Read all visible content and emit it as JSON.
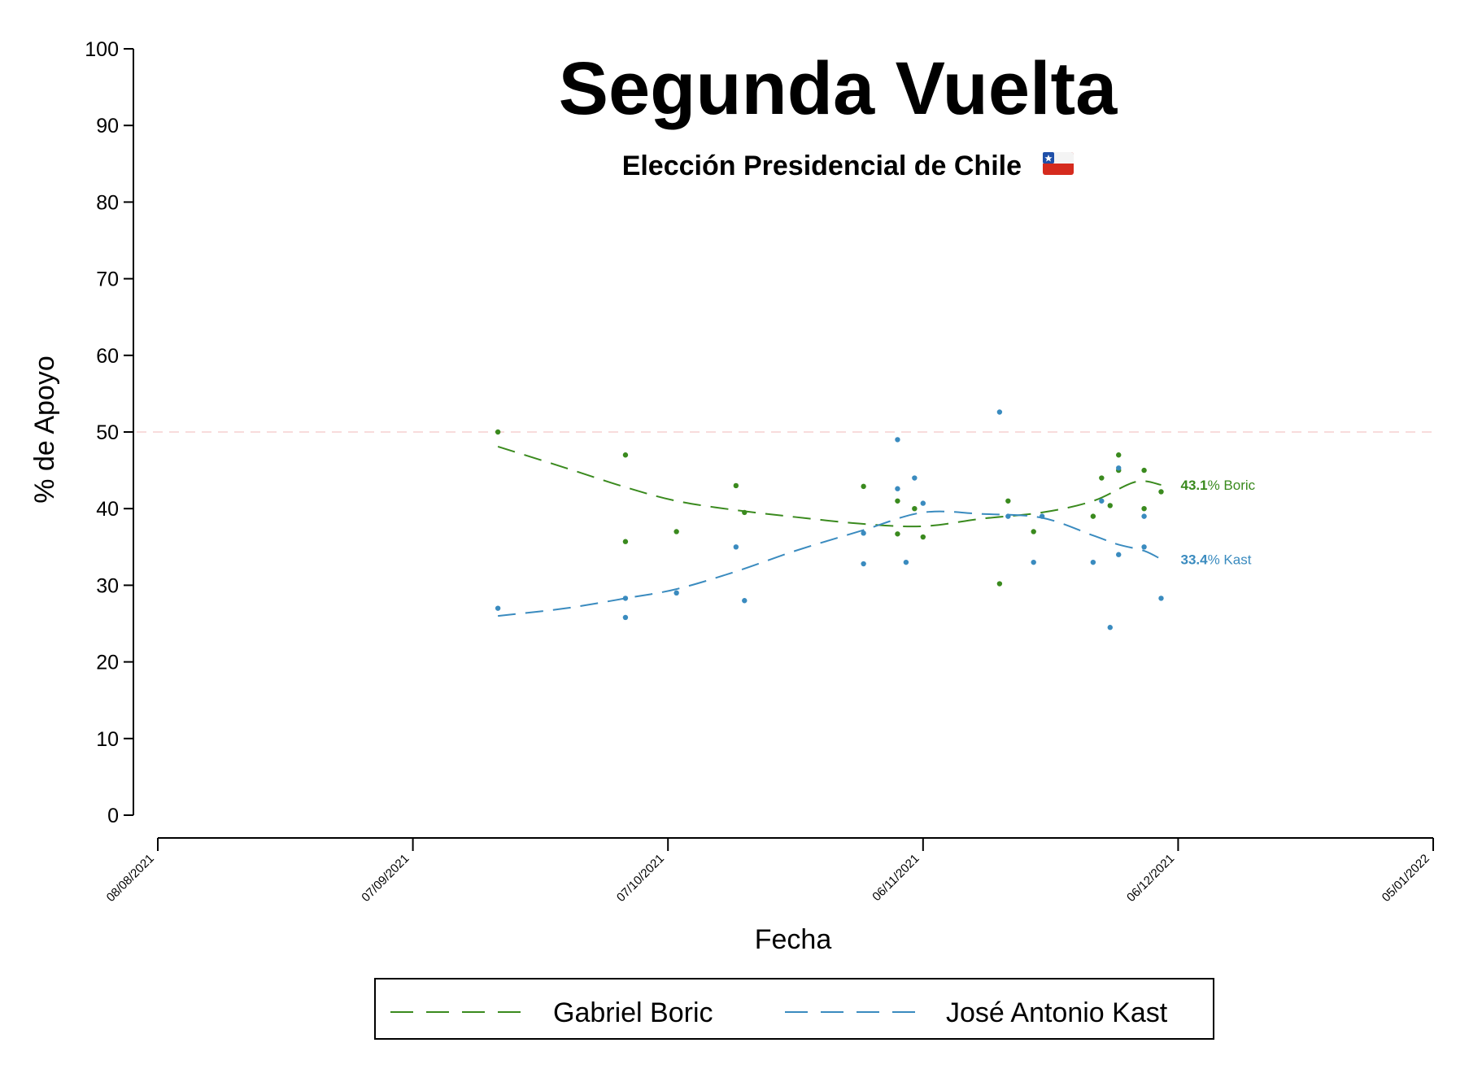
{
  "chart_data": {
    "type": "scatter",
    "title": "Segunda Vuelta",
    "subtitle": "Elección Presidencial de Chile",
    "xlabel": "Fecha",
    "ylabel": "% de Apoyo",
    "ylim": [
      0,
      100
    ],
    "yticks": [
      "0",
      "10",
      "20",
      "30",
      "40",
      "50",
      "60",
      "70",
      "80",
      "90",
      "100"
    ],
    "xlim": [
      "2021-08-08",
      "2022-01-05"
    ],
    "xticks": [
      {
        "date": "2021-08-08",
        "label": "08/08/2021"
      },
      {
        "date": "2021-09-07",
        "label": "07/09/2021"
      },
      {
        "date": "2021-10-07",
        "label": "07/10/2021"
      },
      {
        "date": "2021-11-06",
        "label": "06/11/2021"
      },
      {
        "date": "2021-12-06",
        "label": "06/12/2021"
      },
      {
        "date": "2022-01-05",
        "label": "05/01/2022"
      }
    ],
    "reference_line": {
      "y": 50,
      "color": "#f4c7c7"
    },
    "grid": false,
    "legend": {
      "position": "bottom"
    },
    "series": [
      {
        "name": "Gabriel Boric",
        "short_name": "Boric",
        "color": "#3a8a1e",
        "end_value": "43.1",
        "points": [
          {
            "x": "2021-09-17",
            "y": 50
          },
          {
            "x": "2021-10-02",
            "y": 47
          },
          {
            "x": "2021-10-02",
            "y": 35.7
          },
          {
            "x": "2021-10-08",
            "y": 37
          },
          {
            "x": "2021-10-15",
            "y": 43
          },
          {
            "x": "2021-10-16",
            "y": 39.5
          },
          {
            "x": "2021-10-30",
            "y": 42.9
          },
          {
            "x": "2021-11-03",
            "y": 41
          },
          {
            "x": "2021-11-03",
            "y": 36.7
          },
          {
            "x": "2021-11-05",
            "y": 40
          },
          {
            "x": "2021-11-06",
            "y": 36.3
          },
          {
            "x": "2021-11-15",
            "y": 30.2
          },
          {
            "x": "2021-11-16",
            "y": 41
          },
          {
            "x": "2021-11-19",
            "y": 37
          },
          {
            "x": "2021-11-26",
            "y": 39
          },
          {
            "x": "2021-11-27",
            "y": 44
          },
          {
            "x": "2021-11-28",
            "y": 40.4
          },
          {
            "x": "2021-11-29",
            "y": 47
          },
          {
            "x": "2021-11-29",
            "y": 45
          },
          {
            "x": "2021-12-02",
            "y": 45
          },
          {
            "x": "2021-12-02",
            "y": 40
          },
          {
            "x": "2021-12-04",
            "y": 42.2
          }
        ],
        "trend": [
          {
            "x": "2021-09-17",
            "y": 48.1
          },
          {
            "x": "2021-09-25",
            "y": 45.3
          },
          {
            "x": "2021-10-02",
            "y": 42.8
          },
          {
            "x": "2021-10-08",
            "y": 41
          },
          {
            "x": "2021-10-15",
            "y": 39.8
          },
          {
            "x": "2021-10-22",
            "y": 38.9
          },
          {
            "x": "2021-10-30",
            "y": 38
          },
          {
            "x": "2021-11-06",
            "y": 37.7
          },
          {
            "x": "2021-11-13",
            "y": 38.7
          },
          {
            "x": "2021-11-20",
            "y": 39.5
          },
          {
            "x": "2021-11-26",
            "y": 41
          },
          {
            "x": "2021-12-01",
            "y": 43.5
          },
          {
            "x": "2021-12-04",
            "y": 43.1
          }
        ]
      },
      {
        "name": "José Antonio Kast",
        "short_name": "Kast",
        "color": "#3a8bbf",
        "end_value": "33.4",
        "points": [
          {
            "x": "2021-09-17",
            "y": 27
          },
          {
            "x": "2021-10-02",
            "y": 28.3
          },
          {
            "x": "2021-10-02",
            "y": 25.8
          },
          {
            "x": "2021-10-08",
            "y": 29
          },
          {
            "x": "2021-10-15",
            "y": 35
          },
          {
            "x": "2021-10-16",
            "y": 28
          },
          {
            "x": "2021-10-30",
            "y": 36.8
          },
          {
            "x": "2021-10-30",
            "y": 32.8
          },
          {
            "x": "2021-11-03",
            "y": 49
          },
          {
            "x": "2021-11-03",
            "y": 42.6
          },
          {
            "x": "2021-11-04",
            "y": 33
          },
          {
            "x": "2021-11-05",
            "y": 44
          },
          {
            "x": "2021-11-06",
            "y": 40.7
          },
          {
            "x": "2021-11-15",
            "y": 52.6
          },
          {
            "x": "2021-11-16",
            "y": 39
          },
          {
            "x": "2021-11-19",
            "y": 33
          },
          {
            "x": "2021-11-20",
            "y": 39
          },
          {
            "x": "2021-11-26",
            "y": 33
          },
          {
            "x": "2021-11-27",
            "y": 41
          },
          {
            "x": "2021-11-28",
            "y": 24.5
          },
          {
            "x": "2021-11-29",
            "y": 45.3
          },
          {
            "x": "2021-11-29",
            "y": 34
          },
          {
            "x": "2021-12-02",
            "y": 39
          },
          {
            "x": "2021-12-02",
            "y": 35
          },
          {
            "x": "2021-12-04",
            "y": 28.3
          }
        ],
        "trend": [
          {
            "x": "2021-09-17",
            "y": 26
          },
          {
            "x": "2021-09-25",
            "y": 27
          },
          {
            "x": "2021-10-02",
            "y": 28.3
          },
          {
            "x": "2021-10-08",
            "y": 29.5
          },
          {
            "x": "2021-10-15",
            "y": 31.8
          },
          {
            "x": "2021-10-22",
            "y": 34.5
          },
          {
            "x": "2021-10-30",
            "y": 37.2
          },
          {
            "x": "2021-11-06",
            "y": 39.5
          },
          {
            "x": "2021-11-13",
            "y": 39.3
          },
          {
            "x": "2021-11-20",
            "y": 38.8
          },
          {
            "x": "2021-11-26",
            "y": 36.5
          },
          {
            "x": "2021-11-29",
            "y": 35.3
          },
          {
            "x": "2021-12-02",
            "y": 34.5
          },
          {
            "x": "2021-12-04",
            "y": 33.4
          }
        ]
      }
    ]
  }
}
